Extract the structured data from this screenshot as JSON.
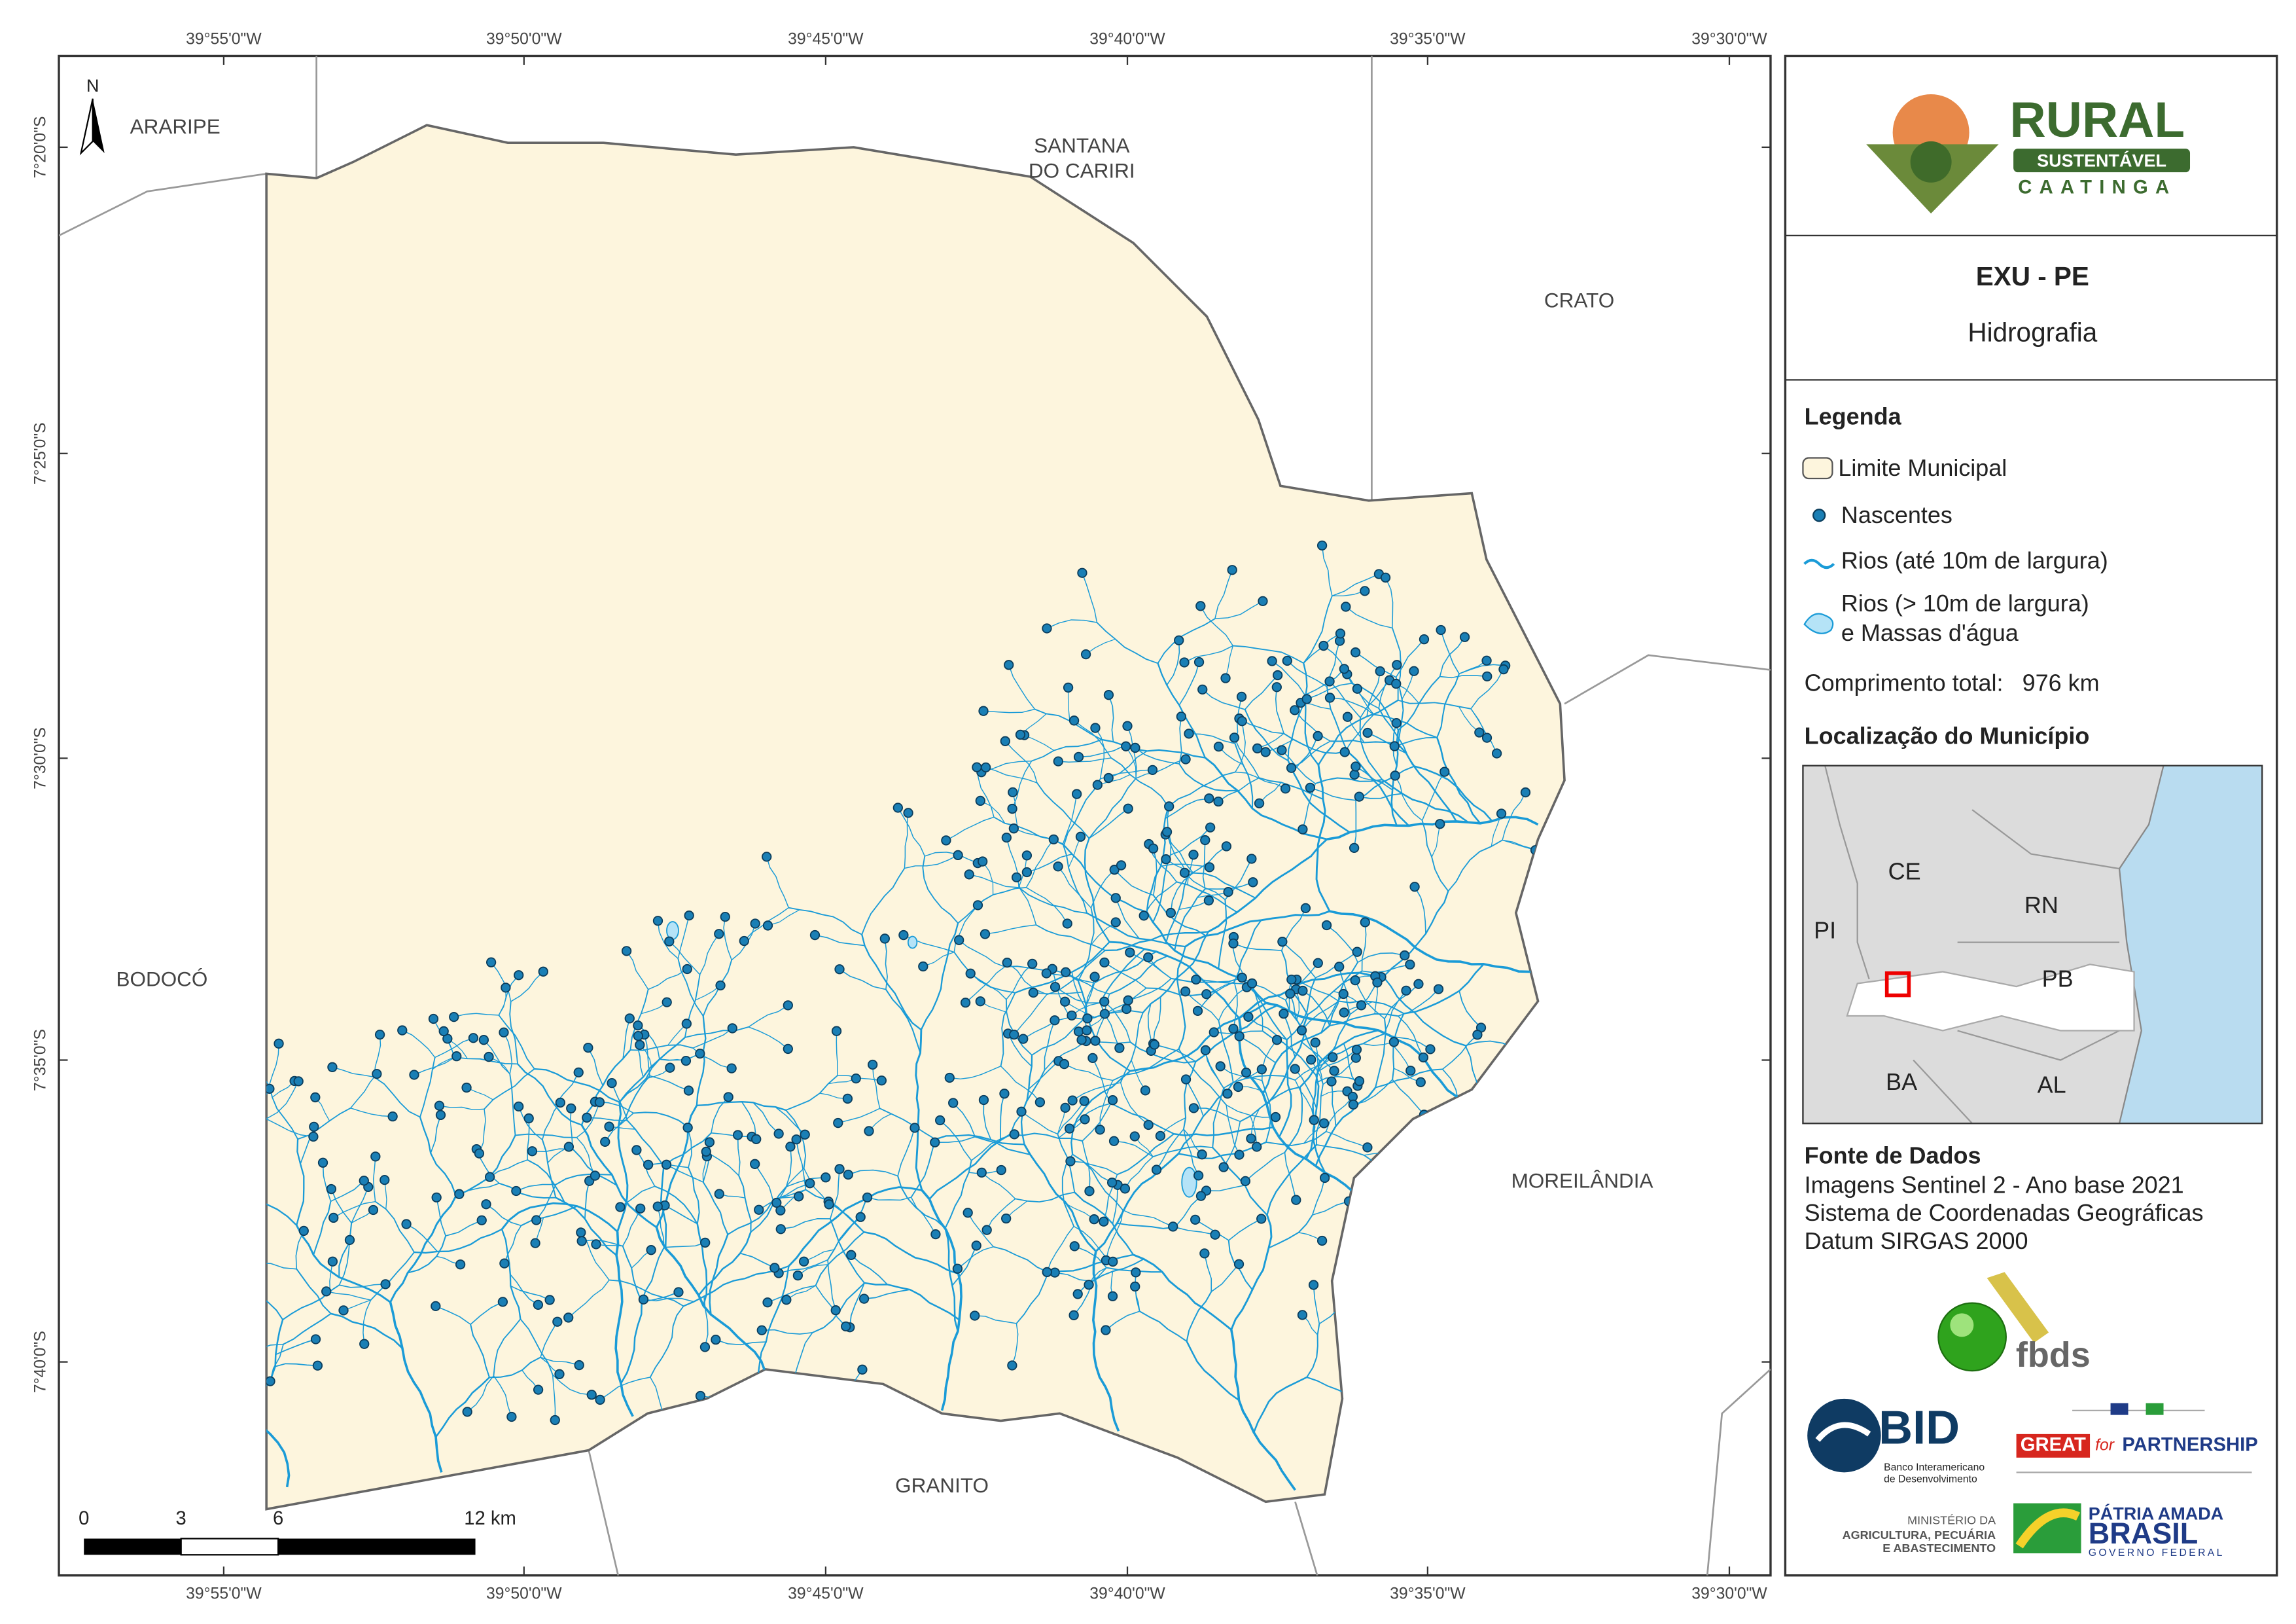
{
  "map": {
    "top_ticks": [
      "39°55'0\"W",
      "39°50'0\"W",
      "39°45'0\"W",
      "39°40'0\"W",
      "39°35'0\"W",
      "39°30'0\"W"
    ],
    "left_ticks": [
      "7°20'0\"S",
      "7°25'0\"S",
      "7°30'0\"S",
      "7°35'0\"S",
      "7°40'0\"S"
    ],
    "north": "N",
    "places": [
      "ARARIPE",
      "SANTANA",
      "DO CARIRI",
      "CRATO",
      "BODOCÓ",
      "MOREILÂNDIA",
      "GRANITO"
    ],
    "scale": [
      "0",
      "3",
      "6",
      "12 km"
    ]
  },
  "panel": {
    "logo": {
      "rural": "RURAL",
      "sustentavel": "SUSTENTÁVEL",
      "caatinga": "CAATINGA"
    },
    "title": "EXU - PE",
    "subtitle": "Hidrografia",
    "legend": {
      "title": "Legenda",
      "items": [
        "Limite Municipal",
        "Nascentes",
        "Rios (até 10m de largura)",
        "Rios (> 10m de largura)",
        "e Massas d'água"
      ],
      "total_label": "Comprimento total:",
      "total_value": "976 km"
    },
    "location": {
      "title": "Localização do Município",
      "states": [
        "CE",
        "RN",
        "PI",
        "PB",
        "BA",
        "AL"
      ]
    },
    "sources": {
      "title": "Fonte de Dados",
      "lines": [
        "Imagens Sentinel 2 - Ano base 2021",
        "Sistema de Coordenadas Geográficas",
        "Datum SIRGAS 2000"
      ]
    },
    "logos": {
      "fbds": "fbds",
      "bid": "BID",
      "bid_sub1": "Banco Interamericano",
      "bid_sub2": "de Desenvolvimento",
      "great": "GREAT",
      "for": "for",
      "partnership": "PARTNERSHIP",
      "min1": "MINISTÉRIO DA",
      "min2": "AGRICULTURA, PECUÁRIA",
      "min3": "E ABASTECIMENTO",
      "patria": "PÁTRIA AMADA",
      "brasil": "BRASIL",
      "gov": "GOVERNO FEDERAL"
    }
  }
}
